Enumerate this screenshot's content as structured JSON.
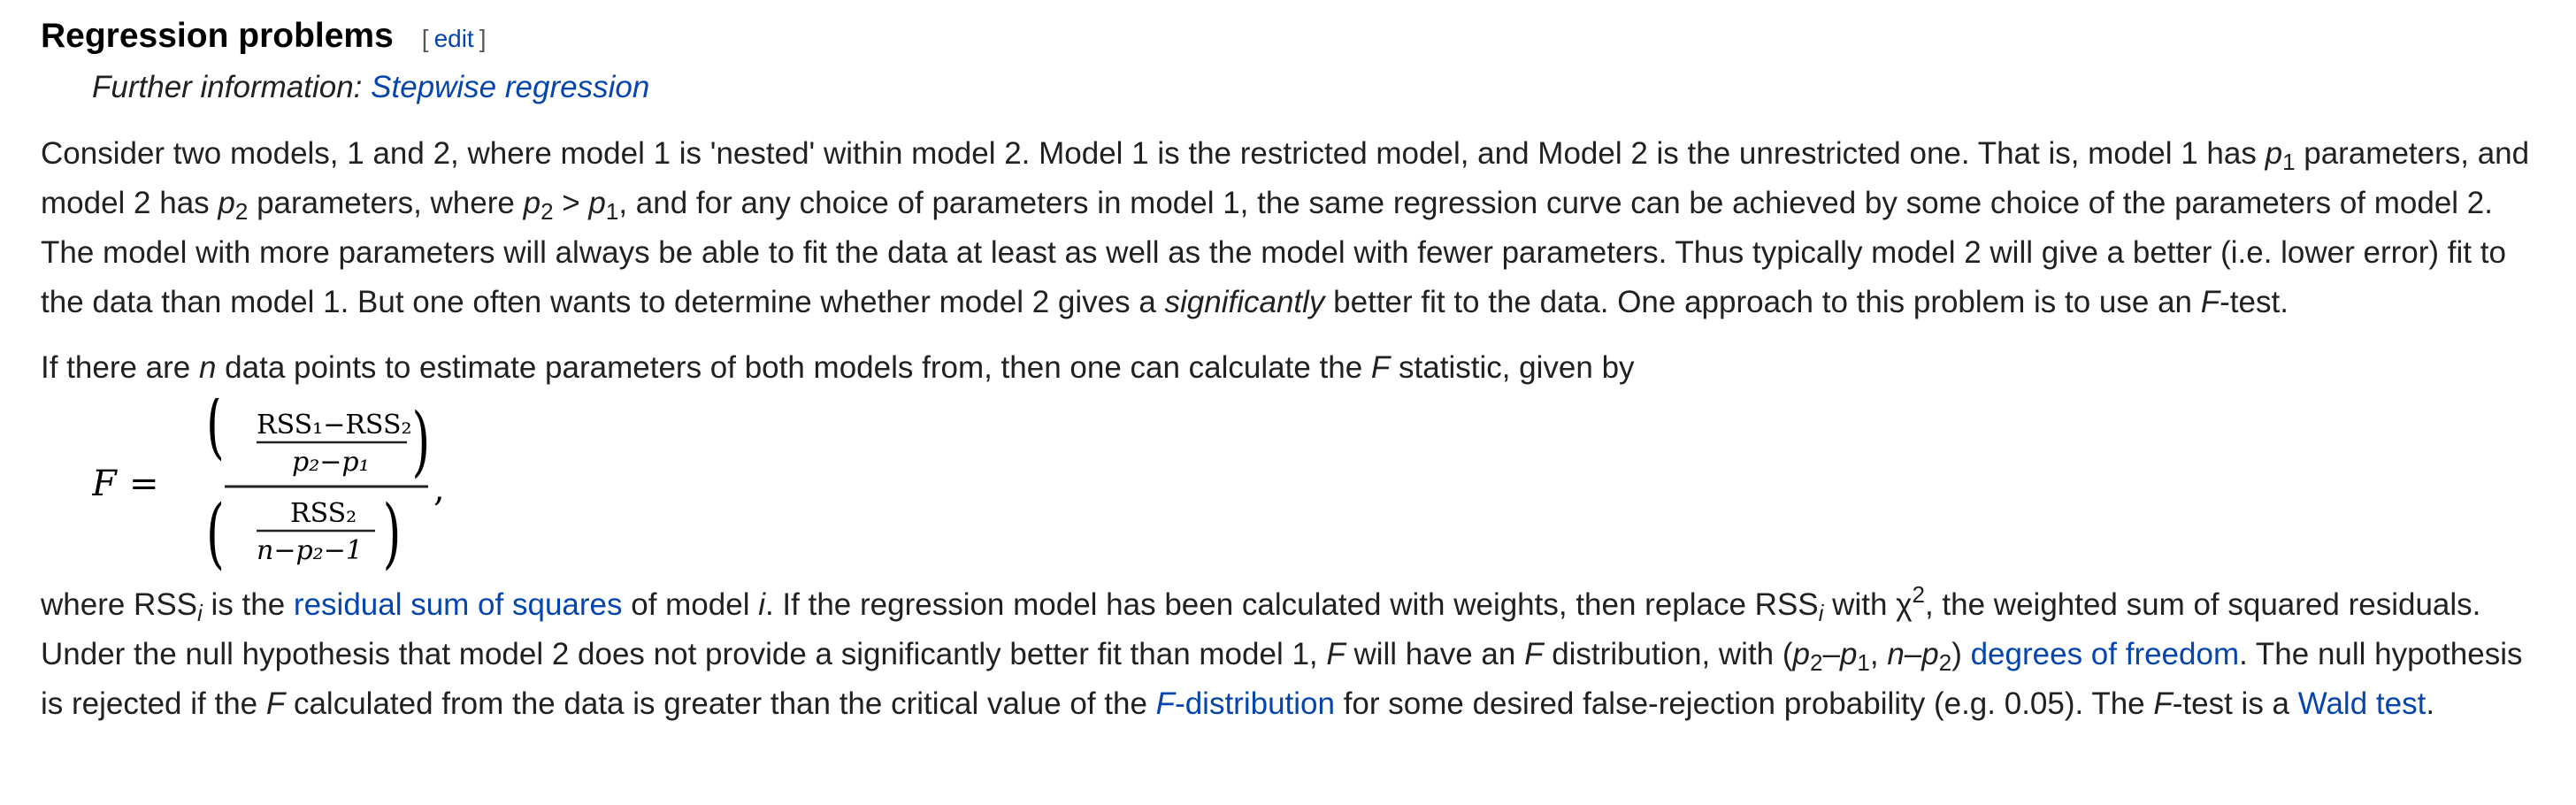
{
  "section": {
    "title": "Regression problems",
    "edit_open": "[",
    "edit_label": "edit",
    "edit_close": "]"
  },
  "hatnote": {
    "prefix": "Further information: ",
    "link": "Stepwise regression"
  },
  "para1": {
    "t1": "Consider two models, 1 and 2, where model 1 is 'nested' within model 2. Model 1 is the restricted model, and Model 2 is the unrestricted one. That is, model 1 has ",
    "p": "p",
    "sub1": "1",
    "t2": " parameters, and model 2 has ",
    "sub2": "2",
    "t3": " parameters, where ",
    "gt": " > ",
    "t4": ", and for any choice of parameters in model 1, the same regression curve can be achieved by some choice of the parameters of model 2. The model with more parameters will always be able to fit the data at least as well as the model with fewer parameters. Thus typically model 2 will give a better (i.e. lower error) fit to the data than model 1. But one often wants to determine whether model 2 gives a ",
    "significantly": "significantly",
    "t5": " better fit to the data. One approach to this problem is to use an ",
    "F": "F",
    "t6": "-test."
  },
  "para2": {
    "t1": "If there are ",
    "n": "n",
    "t2": " data points to estimate parameters of both models from, then one can calculate the ",
    "F": "F",
    "t3": " statistic, given by"
  },
  "formula": {
    "lhs": "F",
    "eq": "=",
    "num_top": "RSS₁−RSS₂",
    "num_bottom": "p₂−p₁",
    "den_top": "RSS₂",
    "den_bottom": "n−p₂−1",
    "lparen": "(",
    "rparen": ")",
    "comma": ","
  },
  "para3": {
    "t1": "where RSS",
    "i": "i",
    "t2": " is the ",
    "link_rss": "residual sum of squares",
    "t3": " of model ",
    "t4": ". If the regression model has been calculated with weights, then replace RSS",
    "t5": " with χ",
    "sup2": "2",
    "t6": ", the weighted sum of squared residuals. Under the null hypothesis that model 2 does not provide a significantly better fit than model 1, ",
    "F": "F",
    "t7": " will have an ",
    "t8": " distribution, with (",
    "p": "p",
    "sub2": "2",
    "dash": "–",
    "sub1": "1",
    "comma_sp": ", ",
    "n": "n",
    "t9": ") ",
    "link_dof": "degrees of freedom",
    "t10": ". The null hypothesis is rejected if the ",
    "t11": " calculated from the data is greater than the critical value of the ",
    "link_fdist_F": "F",
    "link_fdist_rest": "-distribution",
    "t12": " for some desired false-rejection probability (e.g. 0.05). The ",
    "t13": "-test is a ",
    "link_wald": "Wald test",
    "t14": "."
  }
}
